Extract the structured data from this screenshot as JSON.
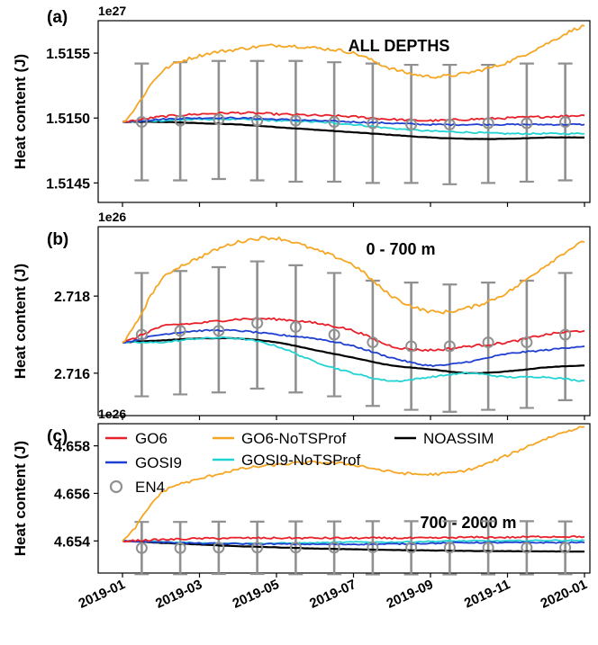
{
  "colors": {
    "GO6": "#e8202a",
    "GOSI9": "#1f3fd1",
    "GO6_NoTSProf": "#f5a623",
    "GOSI9_NoTSProf": "#22d3d3",
    "NOASSIM": "#000000",
    "EN4": "#909090"
  },
  "legend": {
    "GO6": "GO6",
    "GOSI9": "GOSI9",
    "EN4": "EN4",
    "GO6_NoTSProf": "GO6-NoTSProf",
    "GOSI9_NoTSProf": "GOSI9-NoTSProf",
    "NOASSIM": "NOASSIM",
    "placement": "upper-left (panel c)"
  },
  "x_ticks": [
    "2019-01",
    "2019-03",
    "2019-05",
    "2019-07",
    "2019-09",
    "2019-11",
    "2020-01"
  ],
  "chart_data": [
    {
      "type": "line",
      "panel_label": "(a)",
      "title": "ALL DEPTHS",
      "ylabel": "Heat content (J)",
      "offset_label": "1e27",
      "ylim": [
        1.51435,
        1.51575
      ],
      "yticks": [
        "1.5145",
        "1.5150",
        "1.5155"
      ],
      "ytick_values": [
        1.5145,
        1.515,
        1.5155
      ],
      "x_months": [
        0,
        1,
        2,
        3,
        4,
        5,
        6,
        7,
        8,
        9,
        10,
        11,
        12
      ],
      "series": [
        {
          "key": "GO6_NoTSProf",
          "name": "GO6-NoTSProf",
          "values": [
            1.51497,
            1.51535,
            1.51548,
            1.51553,
            1.51556,
            1.51554,
            1.5155,
            1.51538,
            1.51532,
            1.51535,
            1.51543,
            1.51557,
            1.51571
          ]
        },
        {
          "key": "GO6",
          "name": "GO6",
          "values": [
            1.51497,
            1.51501,
            1.51503,
            1.51504,
            1.51503,
            1.51502,
            1.51501,
            1.51499,
            1.51498,
            1.51499,
            1.515,
            1.51501,
            1.51502
          ]
        },
        {
          "key": "GOSI9",
          "name": "GOSI9",
          "values": [
            1.51497,
            1.51499,
            1.515,
            1.515,
            1.51499,
            1.51498,
            1.51497,
            1.51496,
            1.51495,
            1.51495,
            1.51495,
            1.51495,
            1.51495
          ]
        },
        {
          "key": "GOSI9_NoTSProf",
          "name": "GOSI9-NoTSProf",
          "values": [
            1.51497,
            1.51498,
            1.51499,
            1.51499,
            1.51498,
            1.51497,
            1.51495,
            1.51492,
            1.5149,
            1.51489,
            1.51488,
            1.51488,
            1.51488
          ]
        },
        {
          "key": "NOASSIM",
          "name": "NOASSIM",
          "values": [
            1.51497,
            1.51497,
            1.51496,
            1.51495,
            1.51493,
            1.51491,
            1.51489,
            1.51487,
            1.51485,
            1.51484,
            1.51484,
            1.51485,
            1.51485
          ]
        }
      ],
      "en4": {
        "x_months": [
          0.5,
          1.5,
          2.5,
          3.5,
          4.5,
          5.5,
          6.5,
          7.5,
          8.5,
          9.5,
          10.5,
          11.5
        ],
        "values": [
          1.51497,
          1.51498,
          1.51499,
          1.51498,
          1.51498,
          1.51497,
          1.51496,
          1.51495,
          1.51495,
          1.51496,
          1.51496,
          1.51497
        ],
        "lower": [
          1.51452,
          1.51452,
          1.51453,
          1.51452,
          1.51451,
          1.51451,
          1.5145,
          1.5145,
          1.51449,
          1.5145,
          1.51451,
          1.51452
        ],
        "upper": [
          1.51542,
          1.51543,
          1.51544,
          1.51544,
          1.51544,
          1.51543,
          1.51542,
          1.51541,
          1.51541,
          1.51541,
          1.51542,
          1.51542
        ]
      }
    },
    {
      "type": "line",
      "panel_label": "(b)",
      "title": "0 - 700 m",
      "ylabel": "Heat content (J)",
      "offset_label": "1e26",
      "ylim": [
        2.7149,
        2.7198
      ],
      "yticks": [
        "2.716",
        "2.718"
      ],
      "ytick_values": [
        2.716,
        2.718
      ],
      "x_months": [
        0,
        1,
        2,
        3,
        4,
        5,
        6,
        7,
        8,
        9,
        10,
        11,
        12
      ],
      "series": [
        {
          "key": "GO6_NoTSProf",
          "name": "GO6-NoTSProf",
          "values": [
            2.7168,
            2.7184,
            2.719,
            2.7194,
            2.7195,
            2.7192,
            2.7188,
            2.718,
            2.7176,
            2.7177,
            2.7181,
            2.7188,
            2.7194
          ]
        },
        {
          "key": "GO6",
          "name": "GO6",
          "values": [
            2.7168,
            2.7172,
            2.7173,
            2.7174,
            2.7174,
            2.7173,
            2.7171,
            2.7167,
            2.7166,
            2.7167,
            2.7168,
            2.717,
            2.7171
          ]
        },
        {
          "key": "GOSI9",
          "name": "GOSI9",
          "values": [
            2.7168,
            2.717,
            2.7171,
            2.7171,
            2.717,
            2.7169,
            2.7167,
            2.7164,
            2.7162,
            2.7163,
            2.7165,
            2.7166,
            2.7167
          ]
        },
        {
          "key": "GOSI9_NoTSProf",
          "name": "GOSI9-NoTSProf",
          "values": [
            2.7168,
            2.7168,
            2.7169,
            2.7169,
            2.7167,
            2.7163,
            2.716,
            2.7158,
            2.7159,
            2.716,
            2.7159,
            2.7159,
            2.7158
          ]
        },
        {
          "key": "NOASSIM",
          "name": "NOASSIM",
          "values": [
            2.7168,
            2.71685,
            2.7169,
            2.7169,
            2.7168,
            2.7166,
            2.7164,
            2.7162,
            2.7161,
            2.716,
            2.71605,
            2.71615,
            2.7162
          ]
        }
      ],
      "en4": {
        "x_months": [
          0.5,
          1.5,
          2.5,
          3.5,
          4.5,
          5.5,
          6.5,
          7.5,
          8.5,
          9.5,
          10.5,
          11.5
        ],
        "values": [
          2.717,
          2.7171,
          2.7171,
          2.7173,
          2.7172,
          2.717,
          2.7168,
          2.7167,
          2.7167,
          2.7168,
          2.7168,
          2.717
        ],
        "lower": [
          2.7154,
          2.71545,
          2.7155,
          2.7156,
          2.7155,
          2.7154,
          2.71515,
          2.71505,
          2.715,
          2.71505,
          2.7151,
          2.7153
        ],
        "upper": [
          2.7186,
          2.71865,
          2.71875,
          2.7189,
          2.7188,
          2.7186,
          2.7184,
          2.71835,
          2.7183,
          2.71835,
          2.7184,
          2.7186
        ]
      }
    },
    {
      "type": "line",
      "panel_label": "(c)",
      "title": "700 - 2000 m",
      "ylabel": "Heat content (J)",
      "offset_label": "1e26",
      "ylim": [
        4.65265,
        4.65893
      ],
      "yticks": [
        "4.654",
        "4.656",
        "4.658"
      ],
      "ytick_values": [
        4.654,
        4.656,
        4.658
      ],
      "x_months": [
        0,
        1,
        2,
        3,
        4,
        5,
        6,
        7,
        8,
        9,
        10,
        11,
        12
      ],
      "series": [
        {
          "key": "GO6_NoTSProf",
          "name": "GO6-NoTSProf",
          "values": [
            4.654,
            4.656,
            4.6566,
            4.657,
            4.6572,
            4.6573,
            4.6572,
            4.6569,
            4.6568,
            4.657,
            4.6576,
            4.6583,
            4.6588
          ]
        },
        {
          "key": "GO6",
          "name": "GO6",
          "values": [
            4.654,
            4.65405,
            4.6541,
            4.65412,
            4.65412,
            4.65412,
            4.65412,
            4.65412,
            4.65412,
            4.65415,
            4.65415,
            4.65418,
            4.65418
          ]
        },
        {
          "key": "GOSI9",
          "name": "GOSI9",
          "values": [
            4.654,
            4.65395,
            4.6539,
            4.65388,
            4.65387,
            4.65386,
            4.65386,
            4.65387,
            4.6539,
            4.65393,
            4.65393,
            4.65393,
            4.65393
          ]
        },
        {
          "key": "GOSI9_NoTSProf",
          "name": "GOSI9-NoTSProf",
          "values": [
            4.654,
            4.65396,
            4.65392,
            4.6539,
            4.6539,
            4.65392,
            4.65395,
            4.65395,
            4.65398,
            4.654,
            4.654,
            4.65402,
            4.65402
          ]
        },
        {
          "key": "NOASSIM",
          "name": "NOASSIM",
          "values": [
            4.654,
            4.65392,
            4.65385,
            4.65378,
            4.65373,
            4.65368,
            4.65365,
            4.65362,
            4.6536,
            4.65358,
            4.65357,
            4.65356,
            4.65355
          ]
        }
      ],
      "en4": {
        "x_months": [
          0.5,
          1.5,
          2.5,
          3.5,
          4.5,
          5.5,
          6.5,
          7.5,
          8.5,
          9.5,
          10.5,
          11.5
        ],
        "values": [
          4.6537,
          4.6537,
          4.65372,
          4.65372,
          4.65372,
          4.65372,
          4.65373,
          4.65372,
          4.65372,
          4.65372,
          4.65372,
          4.65372
        ],
        "lower": [
          4.6526,
          4.6526,
          4.65261,
          4.65261,
          4.6526,
          4.6526,
          4.65259,
          4.65259,
          4.65259,
          4.65259,
          4.65259,
          4.6526
        ],
        "upper": [
          4.6548,
          4.6548,
          4.65481,
          4.65481,
          4.65482,
          4.65482,
          4.65483,
          4.65483,
          4.65483,
          4.65483,
          4.65483,
          4.65482
        ]
      }
    }
  ]
}
